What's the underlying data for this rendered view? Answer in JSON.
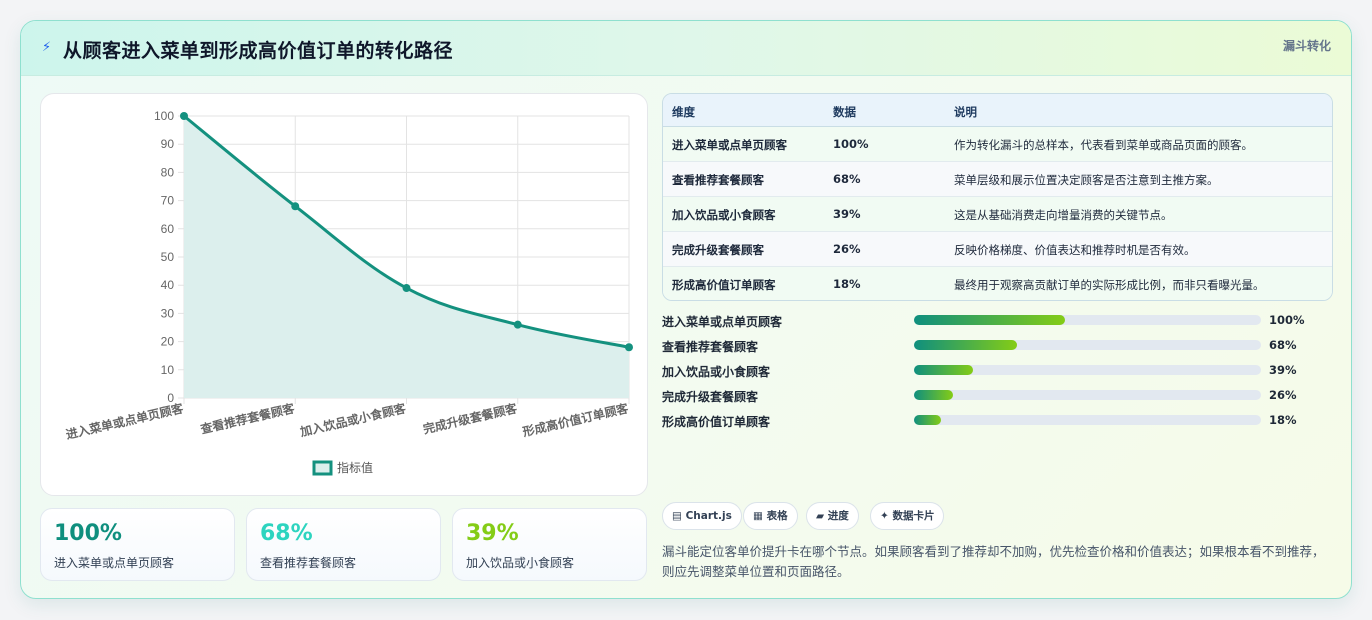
{
  "header": {
    "icon": "lightning-icon",
    "title": "从顾客进入菜单到形成高价值订单的转化路径",
    "tag": "漏斗转化"
  },
  "chart_data": {
    "type": "area",
    "categories": [
      "进入菜单或点单页顾客",
      "查看推荐套餐顾客",
      "加入饮品或小食顾客",
      "完成升级套餐顾客",
      "形成高价值订单顾客"
    ],
    "series": [
      {
        "name": "指标值",
        "values": [
          100,
          68,
          39,
          26,
          18
        ]
      }
    ],
    "ylim": [
      0,
      100
    ],
    "yticks": [
      0,
      10,
      20,
      30,
      40,
      50,
      60,
      70,
      80,
      90,
      100
    ],
    "grid": true,
    "legend": "bottom",
    "line_color": "#14917f",
    "fill_color": "#dcefed"
  },
  "stats": [
    {
      "value": "100%",
      "label": "进入菜单或点单页顾客",
      "color": "#0f8f7e"
    },
    {
      "value": "68%",
      "label": "查看推荐套餐顾客",
      "color": "#2dd4bf"
    },
    {
      "value": "39%",
      "label": "加入饮品或小食顾客",
      "color": "#84cc16"
    }
  ],
  "table": {
    "headers": [
      "维度",
      "数据",
      "说明"
    ],
    "rows": [
      [
        "进入菜单或点单页顾客",
        "100%",
        "作为转化漏斗的总样本，代表看到菜单或商品页面的顾客。"
      ],
      [
        "查看推荐套餐顾客",
        "68%",
        "菜单层级和展示位置决定顾客是否注意到主推方案。"
      ],
      [
        "加入饮品或小食顾客",
        "39%",
        "这是从基础消费走向增量消费的关键节点。"
      ],
      [
        "完成升级套餐顾客",
        "26%",
        "反映价格梯度、价值表达和推荐时机是否有效。"
      ],
      [
        "形成高价值订单顾客",
        "18%",
        "最终用于观察高贡献订单的实际形成比例，而非只看曝光量。"
      ]
    ]
  },
  "progress": [
    {
      "label": "进入菜单或点单页顾客",
      "value": "100%",
      "fraction": 0.435
    },
    {
      "label": "查看推荐套餐顾客",
      "value": "68%",
      "fraction": 0.296
    },
    {
      "label": "加入饮品或小食顾客",
      "value": "39%",
      "fraction": 0.17
    },
    {
      "label": "完成升级套餐顾客",
      "value": "26%",
      "fraction": 0.113
    },
    {
      "label": "形成高价值订单顾客",
      "value": "18%",
      "fraction": 0.078
    }
  ],
  "chips": [
    {
      "icon": "chart-icon",
      "glyph": "▤",
      "label": "Chart.js"
    },
    {
      "icon": "table-icon",
      "glyph": "▦",
      "label": "表格"
    },
    {
      "icon": "progress-icon",
      "glyph": "▰",
      "label": "进度"
    },
    {
      "icon": "sparkle-icon",
      "glyph": "✦",
      "label": "数据卡片"
    }
  ],
  "note": "漏斗能定位客单价提升卡在哪个节点。如果顾客看到了推荐却不加购，优先检查价格和价值表达；如果根本看不到推荐，则应先调整菜单位置和页面路径。"
}
